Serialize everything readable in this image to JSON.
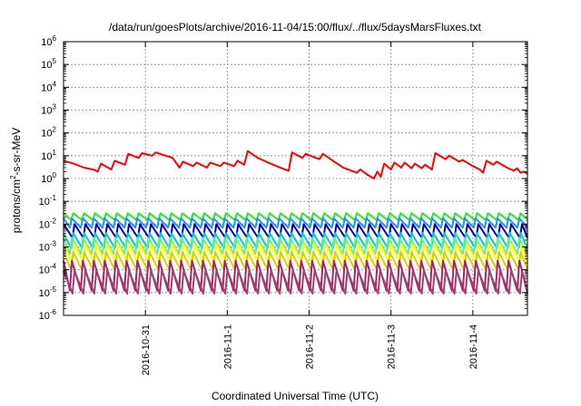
{
  "chart_data": {
    "type": "line",
    "title": "/data/run/goesPlots/archive/2016-11-04/15:00/flux/../flux/5daysMarsFluxes.txt",
    "xlabel": "Coordinated Universal Time (UTC)",
    "ylabel": "protons/cm2-s-sr-MeV",
    "ylabel_base": "protons/cm",
    "ylabel_sup": "2",
    "ylabel_rest": "-s-sr-MeV",
    "y_scale": "log",
    "ylim_exponent": [
      -6,
      6
    ],
    "y_ticks": [
      {
        "base": "10",
        "exp": "-6",
        "value": -6
      },
      {
        "base": "10",
        "exp": "-5",
        "value": -5
      },
      {
        "base": "10",
        "exp": "-4",
        "value": -4
      },
      {
        "base": "10",
        "exp": "-3",
        "value": -3
      },
      {
        "base": "10",
        "exp": "-2",
        "value": -2
      },
      {
        "base": "10",
        "exp": "-1",
        "value": -1
      },
      {
        "base": "10",
        "exp": "0",
        "value": 0
      },
      {
        "base": "10",
        "exp": "1",
        "value": 1
      },
      {
        "base": "10",
        "exp": "2",
        "value": 2
      },
      {
        "base": "10",
        "exp": "3",
        "value": 3
      },
      {
        "base": "10",
        "exp": "4",
        "value": 4
      },
      {
        "base": "10",
        "exp": "5",
        "value": 5
      },
      {
        "base": "10",
        "exp": "6",
        "value": 6
      }
    ],
    "xlim": [
      "2016-10-30 00:00",
      "2016-11-04 16:00"
    ],
    "x_ticks": [
      {
        "label": "2016-10-31",
        "date": "2016-10-31"
      },
      {
        "label": "2016-11-1",
        "date": "2016-11-01"
      },
      {
        "label": "2016-11-2",
        "date": "2016-11-02"
      },
      {
        "label": "2016-11-3",
        "date": "2016-11-03"
      },
      {
        "label": "2016-11-4",
        "date": "2016-11-04"
      }
    ],
    "grid": true,
    "legend": "none",
    "sawtooth_period_hours": 3.2,
    "series": [
      {
        "color": "#ff0000",
        "style": "irregular",
        "points": [
          [
            "2016-10-30 00:00",
            6
          ],
          [
            "2016-10-30 03:00",
            4.5
          ],
          [
            "2016-10-30 06:00",
            3
          ],
          [
            "2016-10-30 09:00",
            2.4
          ],
          [
            "2016-10-30 10:00",
            2.0
          ],
          [
            "2016-10-30 11:00",
            4.5
          ],
          [
            "2016-10-30 14:00",
            2.5
          ],
          [
            "2016-10-30 15:00",
            6
          ],
          [
            "2016-10-30 18:00",
            4
          ],
          [
            "2016-10-30 19:00",
            12
          ],
          [
            "2016-10-30 22:00",
            8
          ],
          [
            "2016-10-30 23:00",
            13
          ],
          [
            "2016-10-31 02:00",
            10
          ],
          [
            "2016-10-31 03:00",
            14
          ],
          [
            "2016-10-31 08:00",
            8
          ],
          [
            "2016-10-31 10:00",
            3
          ],
          [
            "2016-10-31 11:00",
            5.5
          ],
          [
            "2016-10-31 14:00",
            3.5
          ],
          [
            "2016-10-31 15:00",
            5
          ],
          [
            "2016-10-31 18:00",
            3
          ],
          [
            "2016-10-31 19:00",
            5
          ],
          [
            "2016-10-31 22:00",
            3.5
          ],
          [
            "2016-10-31 23:00",
            5
          ],
          [
            "2016-11-01 02:00",
            3.5
          ],
          [
            "2016-11-01 03:00",
            6
          ],
          [
            "2016-11-01 05:00",
            4
          ],
          [
            "2016-11-01 06:00",
            16
          ],
          [
            "2016-11-01 09:00",
            8
          ],
          [
            "2016-11-01 12:00",
            5
          ],
          [
            "2016-11-01 16:00",
            2.8
          ],
          [
            "2016-11-01 18:00",
            2.2
          ],
          [
            "2016-11-01 19:00",
            14
          ],
          [
            "2016-11-01 22:00",
            8
          ],
          [
            "2016-11-01 23:00",
            12
          ],
          [
            "2016-11-02 03:00",
            7
          ],
          [
            "2016-11-02 04:00",
            12
          ],
          [
            "2016-11-02 07:00",
            6
          ],
          [
            "2016-11-02 10:00",
            3
          ],
          [
            "2016-11-02 14:00",
            1.8
          ],
          [
            "2016-11-02 15:00",
            2.5
          ],
          [
            "2016-11-02 17:00",
            1.5
          ],
          [
            "2016-11-02 19:00",
            1.0
          ],
          [
            "2016-11-02 20:00",
            2.0
          ],
          [
            "2016-11-02 21:00",
            1.2
          ],
          [
            "2016-11-02 22:00",
            4.5
          ],
          [
            "2016-11-03 00:00",
            2.5
          ],
          [
            "2016-11-03 01:00",
            5
          ],
          [
            "2016-11-03 03:00",
            3
          ],
          [
            "2016-11-03 04:00",
            5
          ],
          [
            "2016-11-03 06:00",
            2.8
          ],
          [
            "2016-11-03 07:00",
            4.5
          ],
          [
            "2016-11-03 09:00",
            2.8
          ],
          [
            "2016-11-03 10:00",
            4
          ],
          [
            "2016-11-03 12:00",
            2.5
          ],
          [
            "2016-11-03 13:00",
            13
          ],
          [
            "2016-11-03 16:00",
            7
          ],
          [
            "2016-11-03 17:00",
            10
          ],
          [
            "2016-11-03 20:00",
            5.5
          ],
          [
            "2016-11-03 21:00",
            6.5
          ],
          [
            "2016-11-04 00:00",
            3.5
          ],
          [
            "2016-11-04 02:00",
            2.5
          ],
          [
            "2016-11-04 03:00",
            1.8
          ],
          [
            "2016-11-04 04:00",
            6
          ],
          [
            "2016-11-04 06:00",
            4
          ],
          [
            "2016-11-04 07:00",
            5.5
          ],
          [
            "2016-11-04 10:00",
            3
          ],
          [
            "2016-11-04 12:00",
            2.2
          ],
          [
            "2016-11-04 13:00",
            2.8
          ],
          [
            "2016-11-04 14:00",
            1.8
          ],
          [
            "2016-11-04 15:00",
            2.0
          ],
          [
            "2016-11-04 16:00",
            1.6
          ]
        ]
      },
      {
        "color": "#22ee22",
        "style": "sawtooth",
        "peak": 0.03,
        "trough": 0.015
      },
      {
        "color": "#1e90ff",
        "style": "sawtooth",
        "peak": 0.018,
        "trough": 0.007
      },
      {
        "color": "#0000cc",
        "style": "sawtooth",
        "peak": 0.01,
        "trough": 0.0025
      },
      {
        "color": "#00cccc",
        "style": "sawtooth",
        "peak": 0.004,
        "trough": 0.0009
      },
      {
        "color": "#66ee88",
        "style": "sawtooth",
        "peak": 0.0025,
        "trough": 0.0005
      },
      {
        "color": "#ffff00",
        "style": "sawtooth",
        "peak": 0.0013,
        "trough": 0.0002
      },
      {
        "color": "#ddcc00",
        "style": "sawtooth",
        "peak": 0.0006,
        "trough": 0.0001
      },
      {
        "color": "#aa2266",
        "style": "sawtooth",
        "peak": 0.00025,
        "trough": 1.2e-05
      },
      {
        "color": "#a04070",
        "style": "sawtooth",
        "peak": 9e-05,
        "trough": 9e-06
      }
    ]
  }
}
